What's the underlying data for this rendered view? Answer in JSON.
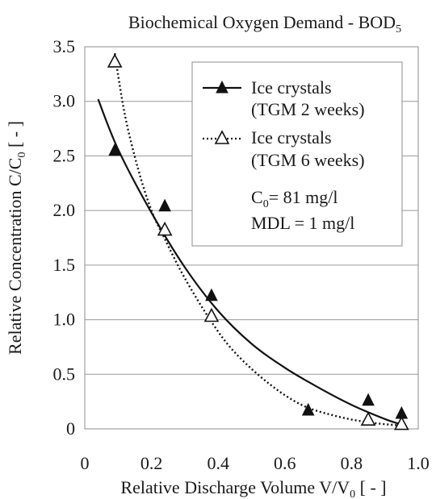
{
  "chart_data": {
    "type": "scatter",
    "title_main": "Biochemical Oxygen Demand - BOD",
    "title_sub": "5",
    "xlabel_main": "Relative Discharge Volume V/V",
    "xlabel_sub": "0",
    "xlabel_end": " [ - ]",
    "ylabel_main": "Relative Concentration C/C",
    "ylabel_sub": "0",
    "ylabel_end": " [ - ]",
    "xlim": [
      0,
      1.0
    ],
    "ylim": [
      0,
      3.5
    ],
    "xticks": [
      "0",
      "0.2",
      "0.4",
      "0.6",
      "0.8",
      "1.0"
    ],
    "yticks": [
      "0",
      "0.5",
      "1.0",
      "1.5",
      "2.0",
      "2.5",
      "3.0",
      "3.5"
    ],
    "x_grid": false,
    "y_grid": true,
    "legend_position": "top-right",
    "series": [
      {
        "name_line1": "Ice crystals",
        "name_line2": "(TGM 2 weeks)",
        "marker": "filled-triangle",
        "line_style": "solid",
        "x": [
          0.09,
          0.24,
          0.38,
          0.67,
          0.85,
          0.95
        ],
        "y": [
          2.55,
          2.04,
          1.22,
          0.17,
          0.26,
          0.14
        ],
        "fit_x": [
          0.04,
          0.1,
          0.2,
          0.3,
          0.4,
          0.5,
          0.6,
          0.7,
          0.8,
          0.9,
          0.95
        ],
        "fit_y": [
          3.02,
          2.56,
          1.98,
          1.48,
          1.08,
          0.78,
          0.56,
          0.38,
          0.22,
          0.09,
          0.04
        ]
      },
      {
        "name_line1": "Ice crystals",
        "name_line2": "(TGM 6 weeks)",
        "marker": "open-triangle",
        "line_style": "dotted",
        "x": [
          0.09,
          0.24,
          0.38,
          0.85,
          0.95
        ],
        "y": [
          3.36,
          1.82,
          1.03,
          0.08,
          0.04
        ],
        "fit_x": [
          0.09,
          0.12,
          0.16,
          0.2,
          0.24,
          0.3,
          0.38,
          0.45,
          0.55,
          0.65,
          0.75,
          0.85,
          0.95
        ],
        "fit_y": [
          3.44,
          2.88,
          2.38,
          2.0,
          1.74,
          1.38,
          0.98,
          0.7,
          0.42,
          0.22,
          0.12,
          0.06,
          0.03
        ]
      }
    ],
    "annotation_c0_main": "C",
    "annotation_c0_sub": "0",
    "annotation_c0_rest": "= 81 mg/l",
    "annotation_mdl": "MDL = 1 mg/l"
  }
}
